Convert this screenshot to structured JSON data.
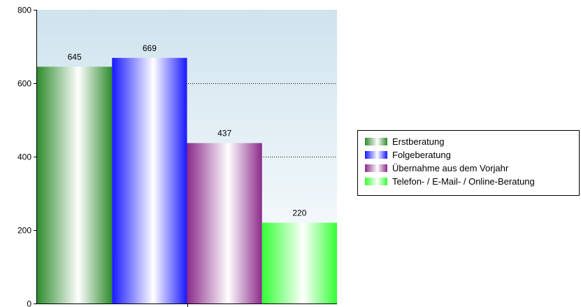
{
  "chart_data": {
    "type": "bar",
    "title": "",
    "xlabel": "",
    "ylabel": "",
    "ylim": [
      0,
      800
    ],
    "yticks": [
      "0",
      "200",
      "400",
      "600",
      "800"
    ],
    "grid": true,
    "legend_position": "right",
    "series": [
      {
        "name": "Erstberatung",
        "values": [
          645
        ],
        "label": "645",
        "color": "#2e8b2e"
      },
      {
        "name": "Folgeberatung",
        "values": [
          669
        ],
        "label": "669",
        "color": "#2020ff"
      },
      {
        "name": "Übernahme aus dem Vorjahr",
        "values": [
          437
        ],
        "label": "437",
        "color": "#8b2a8b"
      },
      {
        "name": "Telefon- / E-Mail- / Online-Beratung",
        "values": [
          220
        ],
        "label": "220",
        "color": "#33ff33"
      }
    ]
  }
}
